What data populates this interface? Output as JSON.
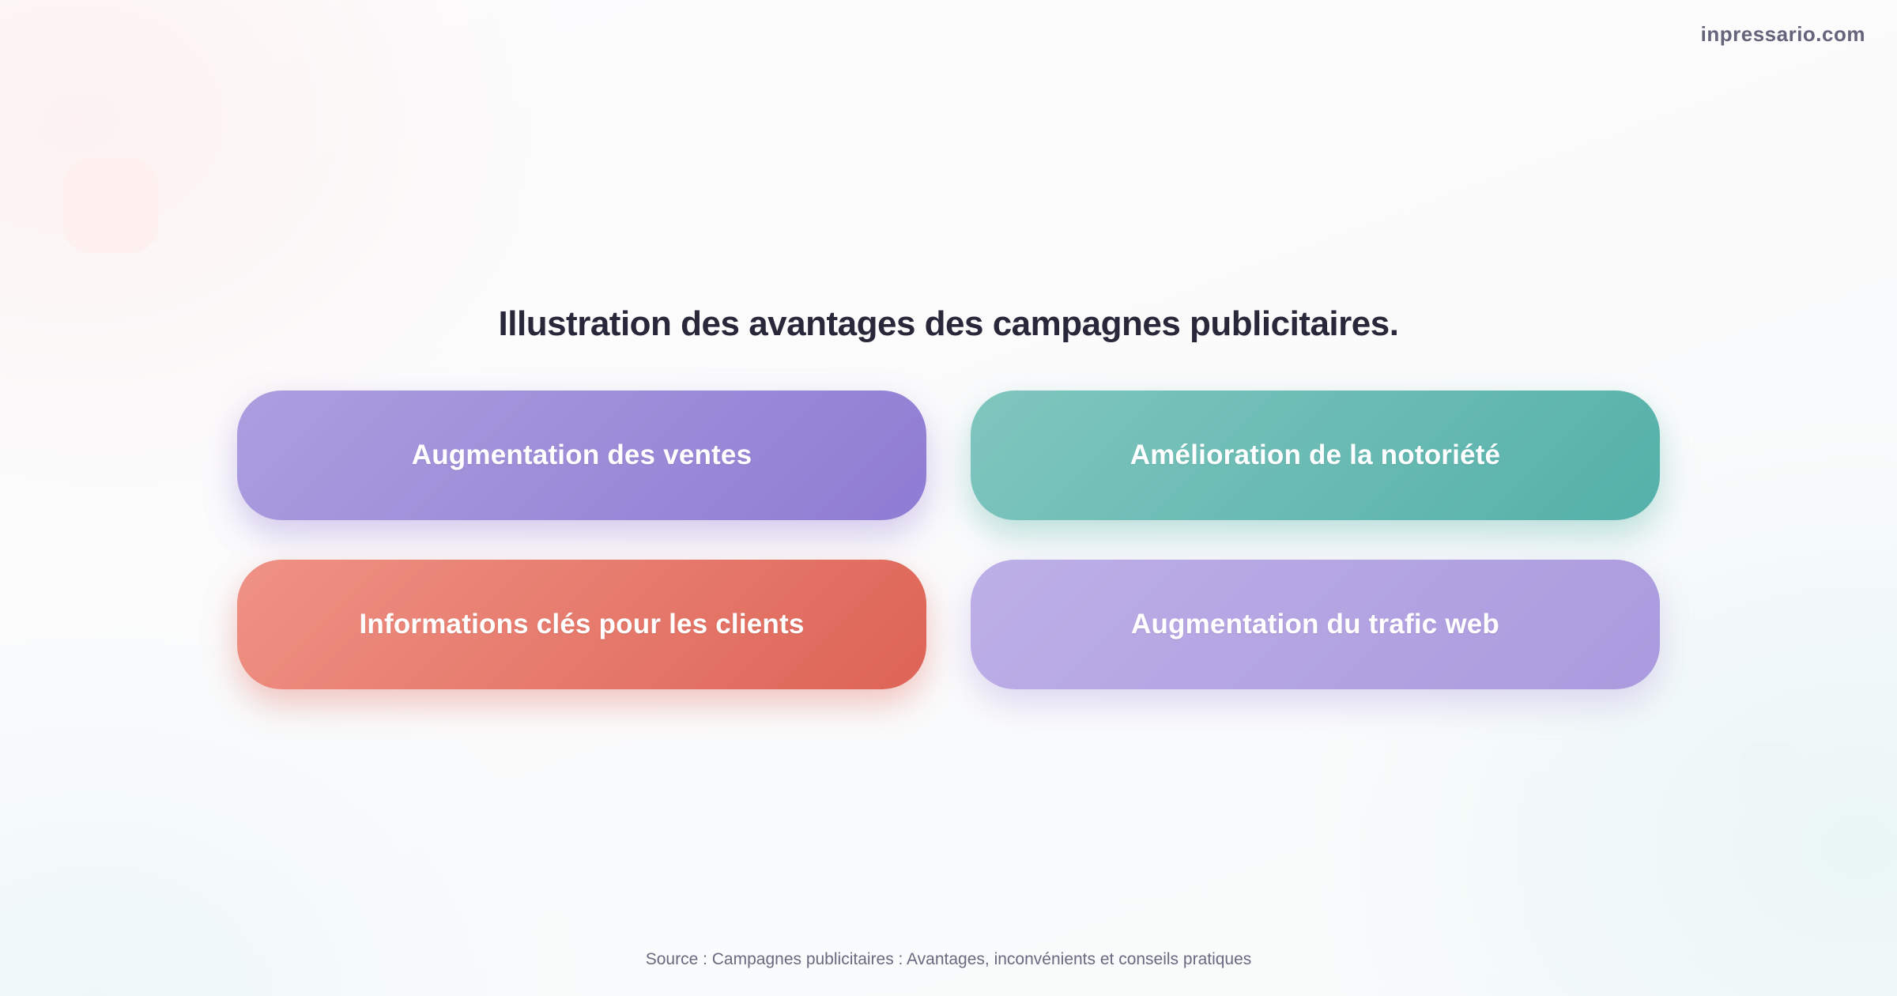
{
  "watermark": "inpressario.com",
  "title": "Illustration des avantages des campagnes publicitaires.",
  "cards": [
    {
      "label": "Augmentation des ventes",
      "color_from": "#ab9edf",
      "color_to": "#8f7cd3",
      "glow": "rgba(148,128,212,0.40)"
    },
    {
      "label": "Amélioration de la notoriété",
      "color_from": "#80c6bf",
      "color_to": "#54b1a9",
      "glow": "rgba(90,179,171,0.40)"
    },
    {
      "label": "Informations clés pour les clients",
      "color_from": "#ef9285",
      "color_to": "#dd6456",
      "glow": "rgba(223,104,91,0.38)"
    },
    {
      "label": "Augmentation du trafic web",
      "color_from": "#bdafe7",
      "color_to": "#ab9ade",
      "glow": "rgba(178,162,226,0.40)"
    }
  ],
  "source": "Source : Campagnes publicitaires : Avantages, inconvénients et conseils pratiques",
  "colors": {
    "title_text": "#28283a",
    "watermark_text": "#64647a",
    "source_text": "#696980",
    "card_text": "#ffffff",
    "deco_pink": "#fdf0ef",
    "deco_teal": "#edf6f5"
  }
}
